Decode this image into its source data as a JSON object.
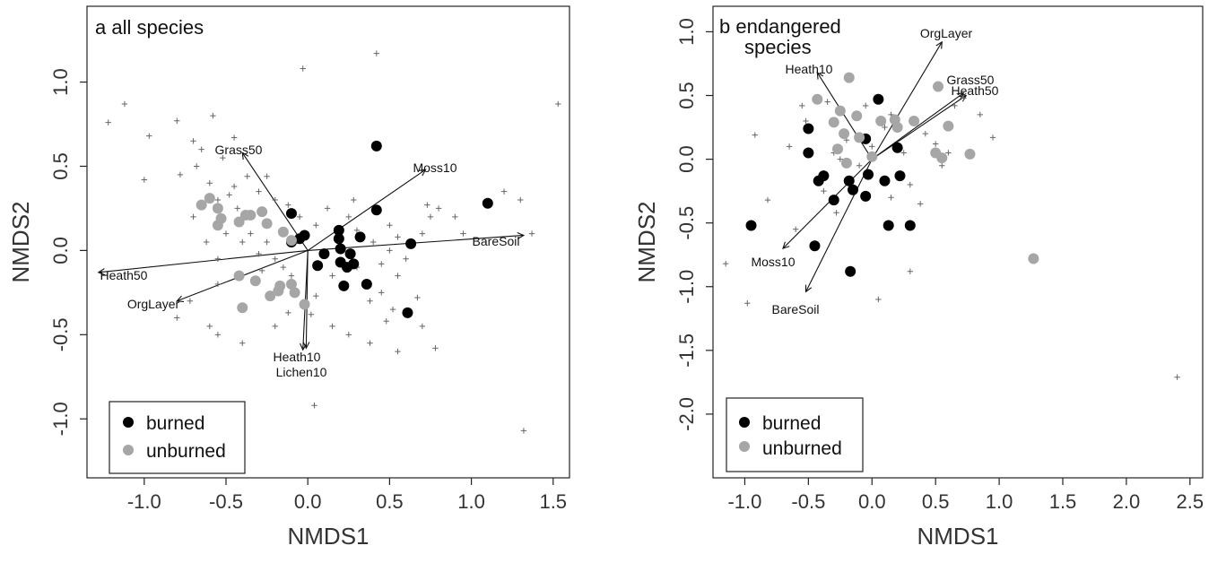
{
  "chart_data": [
    {
      "type": "scatter",
      "title": "a  all species",
      "xlabel": "NMDS1",
      "ylabel": "NMDS2",
      "xlim": [
        -1.35,
        1.6
      ],
      "ylim": [
        -1.35,
        1.45
      ],
      "xticks": [
        -1.0,
        -0.5,
        0.0,
        0.5,
        1.0,
        1.5
      ],
      "xtick_labels": [
        "-1.0",
        "-0.5",
        "0.0",
        "0.5",
        "1.0",
        "1.5"
      ],
      "yticks": [
        -1.0,
        -0.5,
        0.0,
        0.5,
        1.0
      ],
      "ytick_labels": [
        "-1.0",
        "-0.5",
        "0.0",
        "0.5",
        "1.0"
      ],
      "legend": {
        "position": "bottom-left",
        "entries": [
          "burned",
          "unburned"
        ]
      },
      "series": [
        {
          "name": "burned",
          "color": "#000000",
          "points": [
            [
              -0.1,
              0.22
            ],
            [
              -0.05,
              0.07
            ],
            [
              -0.02,
              0.09
            ],
            [
              -0.1,
              0.05
            ],
            [
              0.1,
              -0.02
            ],
            [
              0.06,
              -0.09
            ],
            [
              0.19,
              0.12
            ],
            [
              0.19,
              0.07
            ],
            [
              0.2,
              0.01
            ],
            [
              0.2,
              -0.07
            ],
            [
              0.24,
              -0.1
            ],
            [
              0.22,
              -0.21
            ],
            [
              0.26,
              -0.02
            ],
            [
              0.32,
              0.08
            ],
            [
              0.36,
              -0.2
            ],
            [
              0.42,
              0.24
            ],
            [
              0.42,
              0.62
            ],
            [
              0.63,
              0.04
            ],
            [
              0.61,
              -0.37
            ],
            [
              1.1,
              0.28
            ],
            [
              0.28,
              -0.08
            ]
          ]
        },
        {
          "name": "unburned",
          "color": "#a6a6a6",
          "points": [
            [
              -0.65,
              0.27
            ],
            [
              -0.6,
              0.31
            ],
            [
              -0.55,
              0.15
            ],
            [
              -0.53,
              0.19
            ],
            [
              -0.42,
              0.17
            ],
            [
              -0.38,
              0.21
            ],
            [
              -0.35,
              0.21
            ],
            [
              -0.28,
              0.23
            ],
            [
              -0.25,
              0.16
            ],
            [
              -0.15,
              0.11
            ],
            [
              -0.1,
              0.06
            ],
            [
              -0.42,
              -0.15
            ],
            [
              -0.32,
              -0.18
            ],
            [
              -0.23,
              -0.27
            ],
            [
              -0.18,
              -0.24
            ],
            [
              -0.17,
              -0.21
            ],
            [
              -0.1,
              -0.2
            ],
            [
              -0.08,
              -0.25
            ],
            [
              -0.02,
              -0.32
            ],
            [
              -0.4,
              -0.34
            ],
            [
              -0.55,
              0.25
            ]
          ]
        },
        {
          "name": "species",
          "color": "#666666",
          "marker": "+",
          "points": [
            [
              -1.22,
              0.76
            ],
            [
              -1.12,
              0.87
            ],
            [
              -0.97,
              0.68
            ],
            [
              -1.0,
              0.42
            ],
            [
              -0.8,
              0.77
            ],
            [
              -0.65,
              0.6
            ],
            [
              -0.68,
              0.5
            ],
            [
              -0.52,
              0.55
            ],
            [
              -0.45,
              0.67
            ],
            [
              -0.37,
              0.44
            ],
            [
              -0.25,
              0.44
            ],
            [
              -0.03,
              1.08
            ],
            [
              0.42,
              1.17
            ],
            [
              1.53,
              0.87
            ],
            [
              -0.78,
              0.45
            ],
            [
              -0.6,
              0.4
            ],
            [
              -0.55,
              0.3
            ],
            [
              -0.48,
              0.33
            ],
            [
              -0.43,
              0.25
            ],
            [
              -0.3,
              0.35
            ],
            [
              -0.2,
              0.3
            ],
            [
              -0.12,
              0.27
            ],
            [
              -0.5,
              0.1
            ],
            [
              -0.62,
              0.05
            ],
            [
              -0.7,
              0.2
            ],
            [
              -0.35,
              0.1
            ],
            [
              -0.25,
              0.05
            ],
            [
              -0.3,
              -0.02
            ],
            [
              -0.2,
              -0.05
            ],
            [
              -0.15,
              -0.1
            ],
            [
              -0.55,
              -0.2
            ],
            [
              -0.72,
              -0.3
            ],
            [
              -0.8,
              -0.4
            ],
            [
              -0.6,
              -0.45
            ],
            [
              -0.55,
              -0.5
            ],
            [
              -0.4,
              -0.55
            ],
            [
              -0.2,
              -0.45
            ],
            [
              -0.12,
              -0.37
            ],
            [
              0.05,
              -0.27
            ],
            [
              0.02,
              -0.38
            ],
            [
              0.15,
              -0.45
            ],
            [
              0.25,
              -0.5
            ],
            [
              0.38,
              -0.55
            ],
            [
              0.55,
              -0.6
            ],
            [
              0.7,
              -0.45
            ],
            [
              0.78,
              -0.58
            ],
            [
              0.67,
              -0.28
            ],
            [
              0.52,
              -0.35
            ],
            [
              0.45,
              -0.25
            ],
            [
              0.38,
              -0.3
            ],
            [
              0.55,
              -0.15
            ],
            [
              0.6,
              -0.05
            ],
            [
              0.7,
              0.1
            ],
            [
              0.75,
              0.2
            ],
            [
              0.73,
              0.27
            ],
            [
              0.8,
              0.25
            ],
            [
              0.9,
              0.2
            ],
            [
              0.95,
              0.1
            ],
            [
              1.2,
              0.35
            ],
            [
              1.3,
              0.3
            ],
            [
              1.37,
              0.1
            ],
            [
              1.32,
              -1.07
            ],
            [
              0.04,
              -0.92
            ],
            [
              0.25,
              0.2
            ],
            [
              0.3,
              0.12
            ],
            [
              0.4,
              0.05
            ],
            [
              0.5,
              0.0
            ],
            [
              -0.05,
              0.2
            ],
            [
              0.05,
              0.15
            ],
            [
              -0.4,
              0.05
            ],
            [
              -0.55,
              -0.05
            ],
            [
              -0.45,
              0.38
            ],
            [
              -0.7,
              0.65
            ],
            [
              -0.58,
              0.8
            ],
            [
              0.28,
              0.3
            ],
            [
              0.12,
              0.25
            ],
            [
              0.5,
              0.15
            ],
            [
              -0.28,
              -0.12
            ],
            [
              -0.1,
              -0.15
            ],
            [
              0.15,
              -0.15
            ],
            [
              0.3,
              -0.1
            ],
            [
              0.45,
              -0.08
            ],
            [
              0.55,
              0.08
            ],
            [
              0.48,
              -0.42
            ]
          ]
        }
      ],
      "vectors": [
        {
          "label": "Grass50",
          "x": -0.4,
          "y": 0.58
        },
        {
          "label": "Moss10",
          "x": 0.72,
          "y": 0.48
        },
        {
          "label": "BareSoil",
          "x": 1.32,
          "y": 0.09
        },
        {
          "label": "Heath50",
          "x": -1.28,
          "y": -0.13
        },
        {
          "label": "OrgLayer",
          "x": -0.8,
          "y": -0.3
        },
        {
          "label": "Heath10",
          "x": -0.03,
          "y": -0.59
        },
        {
          "label": "Lichen10",
          "x": -0.01,
          "y": -0.58
        }
      ]
    },
    {
      "type": "scatter",
      "title": "b  endangered species",
      "title_lines": [
        "b  endangered",
        "species"
      ],
      "xlabel": "NMDS1",
      "ylabel": "NMDS2",
      "xlim": [
        -1.25,
        2.6
      ],
      "ylim": [
        -2.5,
        1.2
      ],
      "xticks": [
        -1.0,
        -0.5,
        0.0,
        0.5,
        1.0,
        1.5,
        2.0,
        2.5
      ],
      "xtick_labels": [
        "-1.0",
        "-0.5",
        "0.0",
        "0.5",
        "1.0",
        "1.5",
        "2.0",
        "2.5"
      ],
      "yticks": [
        -2.0,
        -1.5,
        -1.0,
        -0.5,
        0.0,
        0.5,
        1.0
      ],
      "ytick_labels": [
        "-2.0",
        "-1.5",
        "-1.0",
        "-0.5",
        "0.0",
        "0.5",
        "1.0"
      ],
      "legend": {
        "position": "bottom-left",
        "entries": [
          "burned",
          "unburned"
        ]
      },
      "series": [
        {
          "name": "burned",
          "color": "#000000",
          "points": [
            [
              -0.95,
              -0.52
            ],
            [
              -0.5,
              0.24
            ],
            [
              -0.5,
              0.05
            ],
            [
              -0.42,
              -0.17
            ],
            [
              -0.38,
              -0.13
            ],
            [
              -0.3,
              -0.32
            ],
            [
              -0.18,
              -0.17
            ],
            [
              -0.15,
              -0.24
            ],
            [
              -0.05,
              0.16
            ],
            [
              -0.05,
              -0.29
            ],
            [
              -0.03,
              -0.12
            ],
            [
              0.05,
              0.47
            ],
            [
              0.2,
              0.09
            ],
            [
              0.22,
              -0.13
            ],
            [
              0.3,
              -0.52
            ],
            [
              0.13,
              -0.52
            ],
            [
              0.1,
              -0.17
            ],
            [
              -0.45,
              -0.68
            ],
            [
              -0.17,
              -0.88
            ]
          ]
        },
        {
          "name": "unburned",
          "color": "#a6a6a6",
          "points": [
            [
              -0.18,
              0.64
            ],
            [
              -0.43,
              0.47
            ],
            [
              -0.3,
              0.29
            ],
            [
              -0.27,
              0.08
            ],
            [
              -0.2,
              -0.03
            ],
            [
              -0.25,
              0.38
            ],
            [
              -0.22,
              0.2
            ],
            [
              -0.12,
              0.34
            ],
            [
              -0.1,
              0.17
            ],
            [
              0.0,
              0.02
            ],
            [
              0.07,
              0.3
            ],
            [
              0.18,
              0.31
            ],
            [
              0.2,
              0.25
            ],
            [
              0.33,
              0.3
            ],
            [
              0.52,
              0.57
            ],
            [
              0.6,
              0.26
            ],
            [
              0.5,
              0.05
            ],
            [
              0.55,
              0.01
            ],
            [
              0.77,
              0.04
            ],
            [
              1.27,
              -0.78
            ]
          ]
        },
        {
          "name": "species",
          "color": "#666666",
          "marker": "+",
          "points": [
            [
              -1.15,
              -0.82
            ],
            [
              -0.92,
              0.19
            ],
            [
              -0.82,
              -0.32
            ],
            [
              -0.98,
              -1.13
            ],
            [
              -0.55,
              0.42
            ],
            [
              -0.52,
              0.3
            ],
            [
              -0.35,
              0.45
            ],
            [
              -0.2,
              0.15
            ],
            [
              -0.3,
              0.05
            ],
            [
              -0.25,
              0.0
            ],
            [
              -0.38,
              -0.25
            ],
            [
              -0.28,
              -0.42
            ],
            [
              -0.1,
              -0.05
            ],
            [
              0.0,
              0.1
            ],
            [
              0.1,
              0.25
            ],
            [
              0.15,
              0.35
            ],
            [
              0.15,
              -0.3
            ],
            [
              0.25,
              0.05
            ],
            [
              0.3,
              -0.2
            ],
            [
              0.38,
              -0.35
            ],
            [
              0.5,
              0.12
            ],
            [
              0.55,
              -0.05
            ],
            [
              0.65,
              0.42
            ],
            [
              0.72,
              0.48
            ],
            [
              0.85,
              0.35
            ],
            [
              0.95,
              0.17
            ],
            [
              0.05,
              -1.1
            ],
            [
              0.3,
              -0.88
            ],
            [
              2.4,
              -1.71
            ],
            [
              -0.6,
              -0.55
            ],
            [
              -0.65,
              0.1
            ],
            [
              -0.05,
              0.42
            ],
            [
              0.42,
              0.2
            ],
            [
              0.6,
              0.05
            ]
          ]
        }
      ],
      "vectors": [
        {
          "label": "OrgLayer",
          "x": 0.55,
          "y": 0.92
        },
        {
          "label": "Heath10",
          "x": -0.43,
          "y": 0.68
        },
        {
          "label": "Grass50",
          "x": 0.72,
          "y": 0.52
        },
        {
          "label": "Heath50",
          "x": 0.74,
          "y": 0.5
        },
        {
          "label": "Moss10",
          "x": -0.7,
          "y": -0.7
        },
        {
          "label": "BareSoil",
          "x": -0.52,
          "y": -1.04
        }
      ]
    }
  ]
}
